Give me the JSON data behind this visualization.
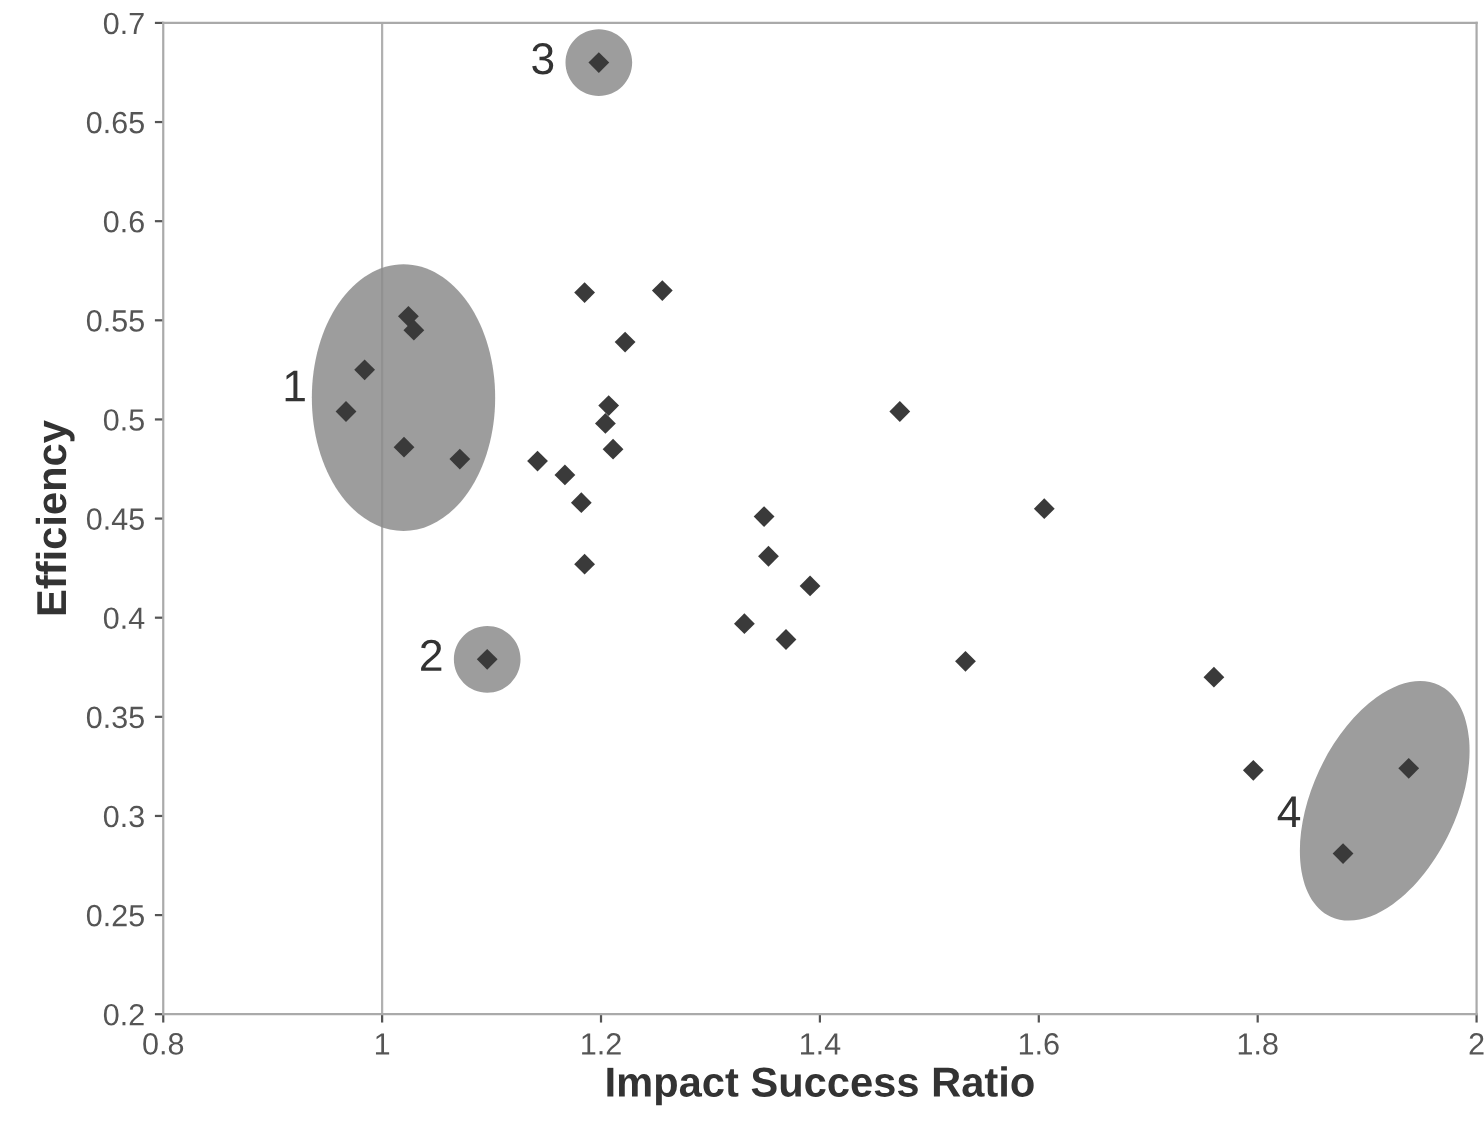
{
  "chart_data": {
    "type": "scatter",
    "xlabel": "Impact Success Ratio",
    "ylabel": "Efficiency",
    "xlim": [
      0.8,
      2
    ],
    "xticks": [
      0.8,
      1,
      1.2,
      1.4,
      1.6,
      1.8,
      2
    ],
    "ylim": [
      0.2,
      0.7
    ],
    "yticks": [
      0.2,
      0.25,
      0.3,
      0.35,
      0.4,
      0.45,
      0.5,
      0.55,
      0.6,
      0.65,
      0.7
    ],
    "grid": false,
    "legend": false,
    "marker": "diamond",
    "ref_lines": [
      {
        "axis": "x",
        "value": 1,
        "color": "#b0b0b0"
      }
    ],
    "annotations": [
      {
        "text": "1",
        "x": 0.984,
        "y": 0.525
      },
      {
        "text": "2",
        "x": 1.096,
        "y": 0.379
      },
      {
        "text": "3",
        "x": 1.198,
        "y": 0.68
      },
      {
        "text": "4",
        "x": 1.878,
        "y": 0.281
      }
    ],
    "series": [
      {
        "color": "#3a3a3a",
        "x": [
          0.967,
          0.984,
          1.024,
          1.029,
          1.02,
          1.071,
          1.142,
          1.167,
          1.182,
          1.185,
          1.185,
          1.256,
          1.222,
          1.207,
          1.204,
          1.211,
          1.198,
          1.096,
          1.349,
          1.353,
          1.391,
          1.369,
          1.331,
          1.473,
          1.605,
          1.533,
          1.76,
          1.796,
          1.938,
          1.878
        ],
        "values": [
          0.504,
          0.525,
          0.552,
          0.545,
          0.486,
          0.48,
          0.479,
          0.472,
          0.458,
          0.427,
          0.564,
          0.565,
          0.539,
          0.507,
          0.498,
          0.485,
          0.68,
          0.379,
          0.451,
          0.431,
          0.416,
          0.389,
          0.397,
          0.504,
          0.455,
          0.378,
          0.37,
          0.323,
          0.324,
          0.281
        ]
      }
    ]
  }
}
